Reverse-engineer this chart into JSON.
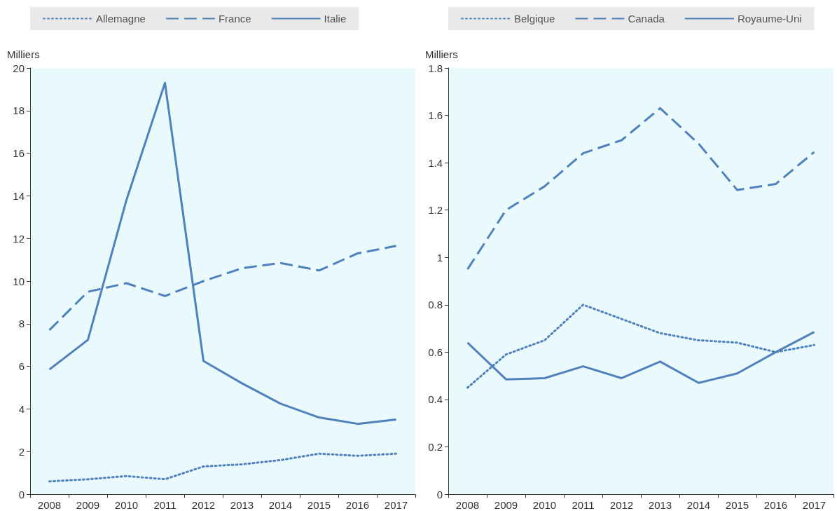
{
  "chart_data": [
    {
      "type": "line",
      "ylabel": "Milliers",
      "categories": [
        "2008",
        "2009",
        "2010",
        "2011",
        "2012",
        "2013",
        "2014",
        "2015",
        "2016",
        "2017"
      ],
      "ylim": [
        0,
        20
      ],
      "yticks": [
        0,
        2,
        4,
        6,
        8,
        10,
        12,
        14,
        16,
        18,
        20
      ],
      "grid": false,
      "legend": "top",
      "marker": "none",
      "series": [
        {
          "name": "Allemagne",
          "color": "#4f81bd",
          "line_style": "dotted",
          "values": [
            0.6,
            0.7,
            0.85,
            0.7,
            1.3,
            1.4,
            1.6,
            1.9,
            1.8,
            1.9
          ]
        },
        {
          "name": "France",
          "color": "#4f81bd",
          "line_style": "dashed",
          "values": [
            7.7,
            9.5,
            9.9,
            9.3,
            10.0,
            10.6,
            10.85,
            10.5,
            11.3,
            11.65
          ]
        },
        {
          "name": "Italie",
          "color": "#4f81bd",
          "line_style": "solid",
          "values": [
            5.85,
            7.24,
            13.8,
            19.3,
            6.25,
            5.2,
            4.25,
            3.6,
            3.3,
            3.5
          ]
        }
      ]
    },
    {
      "type": "line",
      "ylabel": "Milliers",
      "categories": [
        "2008",
        "2009",
        "2010",
        "2011",
        "2012",
        "2013",
        "2014",
        "2015",
        "2016",
        "2017"
      ],
      "ylim": [
        0,
        1.8
      ],
      "yticks": [
        0,
        0.2,
        0.4,
        0.6,
        0.8,
        1,
        1.2,
        1.4,
        1.6,
        1.8
      ],
      "grid": false,
      "legend": "top",
      "marker": "none",
      "series": [
        {
          "name": "Belgique",
          "color": "#4f81bd",
          "line_style": "dotted",
          "values": [
            0.45,
            0.59,
            0.65,
            0.8,
            0.74,
            0.68,
            0.65,
            0.64,
            0.6,
            0.63
          ]
        },
        {
          "name": "Canada",
          "color": "#4f81bd",
          "line_style": "dashed",
          "values": [
            0.95,
            1.2,
            1.3,
            1.44,
            1.495,
            1.63,
            1.48,
            1.285,
            1.31,
            1.445
          ]
        },
        {
          "name": "Royaume-Uni",
          "color": "#4f81bd",
          "line_style": "solid",
          "values": [
            0.64,
            0.485,
            0.49,
            0.54,
            0.49,
            0.56,
            0.47,
            0.51,
            0.6,
            0.685
          ]
        }
      ]
    }
  ]
}
